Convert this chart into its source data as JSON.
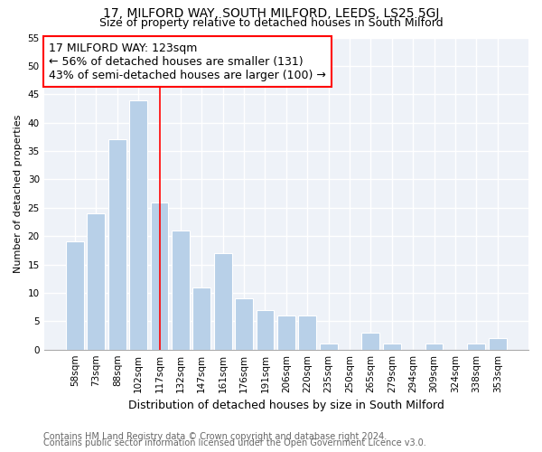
{
  "title": "17, MILFORD WAY, SOUTH MILFORD, LEEDS, LS25 5GJ",
  "subtitle": "Size of property relative to detached houses in South Milford",
  "xlabel": "Distribution of detached houses by size in South Milford",
  "ylabel": "Number of detached properties",
  "categories": [
    "58sqm",
    "73sqm",
    "88sqm",
    "102sqm",
    "117sqm",
    "132sqm",
    "147sqm",
    "161sqm",
    "176sqm",
    "191sqm",
    "206sqm",
    "220sqm",
    "235sqm",
    "250sqm",
    "265sqm",
    "279sqm",
    "294sqm",
    "309sqm",
    "324sqm",
    "338sqm",
    "353sqm"
  ],
  "values": [
    19,
    24,
    37,
    44,
    26,
    21,
    11,
    17,
    9,
    7,
    6,
    6,
    1,
    0,
    3,
    1,
    0,
    1,
    0,
    1,
    2
  ],
  "bar_color": "#b8d0e8",
  "annotation_line1": "17 MILFORD WAY: 123sqm",
  "annotation_line2": "← 56% of detached houses are smaller (131)",
  "annotation_line3": "43% of semi-detached houses are larger (100) →",
  "vline_index": 4.5,
  "ylim": [
    0,
    55
  ],
  "yticks": [
    0,
    5,
    10,
    15,
    20,
    25,
    30,
    35,
    40,
    45,
    50,
    55
  ],
  "footnote1": "Contains HM Land Registry data © Crown copyright and database right 2024.",
  "footnote2": "Contains public sector information licensed under the Open Government Licence v3.0.",
  "background_color": "#eef2f8",
  "grid_color": "#d0d8e8",
  "title_fontsize": 10,
  "subtitle_fontsize": 9,
  "annotation_fontsize": 9,
  "xlabel_fontsize": 9,
  "ylabel_fontsize": 8,
  "tick_fontsize": 7.5,
  "footnote_fontsize": 7
}
